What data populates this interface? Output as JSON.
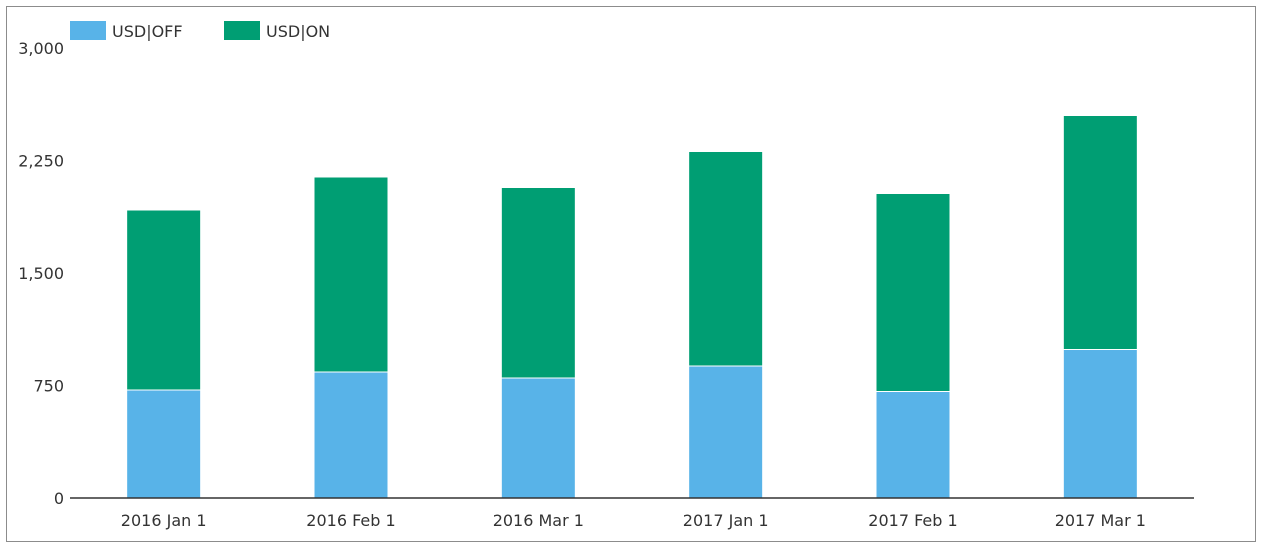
{
  "chart_data": {
    "type": "bar",
    "stacked": true,
    "categories": [
      "2016 Jan 1",
      "2016 Feb 1",
      "2016 Mar 1",
      "2017 Jan 1",
      "2017 Feb 1",
      "2017 Mar 1"
    ],
    "series": [
      {
        "name": "USD|OFF",
        "color": "#58b3e8",
        "values": [
          720,
          840,
          800,
          880,
          710,
          990
        ]
      },
      {
        "name": "USD|ON",
        "color": "#009e73",
        "values": [
          1200,
          1300,
          1270,
          1430,
          1320,
          1560
        ]
      }
    ],
    "yticks": [
      "0",
      "750",
      "1,500",
      "2,250",
      "3,000"
    ],
    "ytick_values": [
      0,
      750,
      1500,
      2250,
      3000
    ],
    "ylim": [
      0,
      3000
    ],
    "legend_position": "top-left",
    "grid": false
  }
}
